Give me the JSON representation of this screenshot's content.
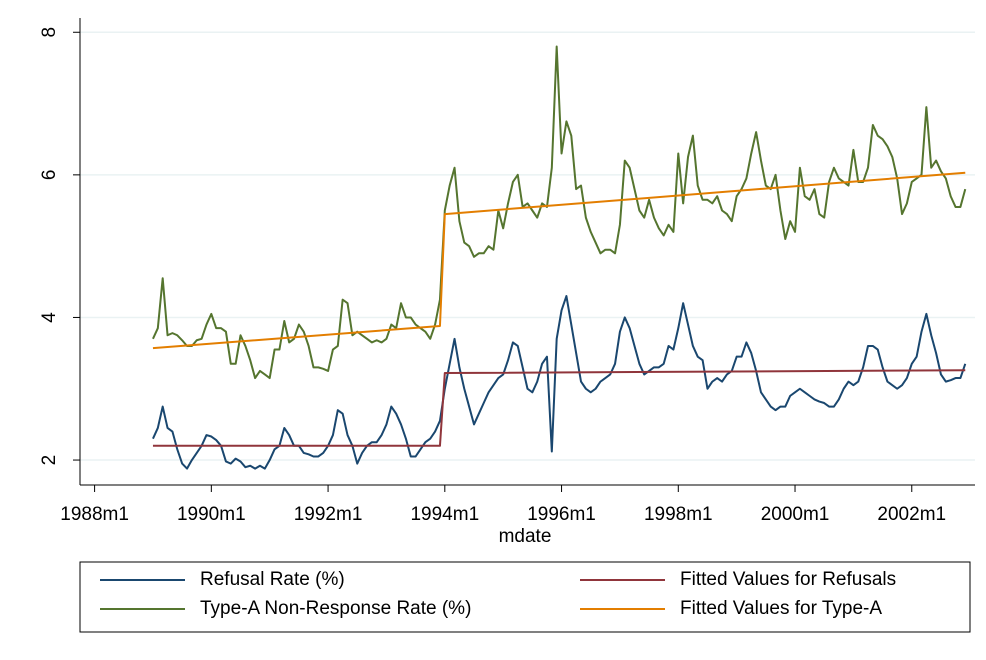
{
  "chart_data": {
    "type": "line",
    "x_label": "mdate",
    "x": [
      348,
      349,
      350,
      351,
      352,
      353,
      354,
      355,
      356,
      357,
      358,
      359,
      360,
      361,
      362,
      363,
      364,
      365,
      366,
      367,
      368,
      369,
      370,
      371,
      372,
      373,
      374,
      375,
      376,
      377,
      378,
      379,
      380,
      381,
      382,
      383,
      384,
      385,
      386,
      387,
      388,
      389,
      390,
      391,
      392,
      393,
      394,
      395,
      396,
      397,
      398,
      399,
      400,
      401,
      402,
      403,
      404,
      405,
      406,
      407,
      408,
      409,
      410,
      411,
      412,
      413,
      414,
      415,
      416,
      417,
      418,
      419,
      420,
      421,
      422,
      423,
      424,
      425,
      426,
      427,
      428,
      429,
      430,
      431,
      432,
      433,
      434,
      435,
      436,
      437,
      438,
      439,
      440,
      441,
      442,
      443,
      444,
      445,
      446,
      447,
      448,
      449,
      450,
      451,
      452,
      453,
      454,
      455,
      456,
      457,
      458,
      459,
      460,
      461,
      462,
      463,
      464,
      465,
      466,
      467,
      468,
      469,
      470,
      471,
      472,
      473,
      474,
      475,
      476,
      477,
      478,
      479,
      480,
      481,
      482,
      483,
      484,
      485,
      486,
      487,
      488,
      489,
      490,
      491,
      492,
      493,
      494,
      495,
      496,
      497,
      498,
      499,
      500,
      501,
      502,
      503,
      504,
      505,
      506,
      507,
      508,
      509,
      510,
      511,
      512,
      513,
      514,
      515
    ],
    "series": [
      {
        "name": "Refusal Rate (%)",
        "color": "#1a476f",
        "values": [
          2.3,
          2.45,
          2.75,
          2.45,
          2.4,
          2.15,
          1.95,
          1.88,
          2.0,
          2.1,
          2.2,
          2.35,
          2.33,
          2.28,
          2.2,
          1.98,
          1.95,
          2.02,
          1.98,
          1.9,
          1.92,
          1.88,
          1.92,
          1.88,
          2.0,
          2.15,
          2.2,
          2.45,
          2.35,
          2.2,
          2.2,
          2.1,
          2.08,
          2.05,
          2.05,
          2.1,
          2.2,
          2.35,
          2.7,
          2.65,
          2.35,
          2.2,
          1.95,
          2.1,
          2.2,
          2.25,
          2.25,
          2.35,
          2.5,
          2.75,
          2.65,
          2.5,
          2.3,
          2.05,
          2.05,
          2.15,
          2.25,
          2.3,
          2.4,
          2.55,
          3.0,
          3.35,
          3.7,
          3.3,
          3.0,
          2.75,
          2.5,
          2.65,
          2.8,
          2.95,
          3.05,
          3.15,
          3.2,
          3.4,
          3.65,
          3.6,
          3.3,
          3.0,
          2.95,
          3.1,
          3.35,
          3.45,
          2.12,
          3.7,
          4.1,
          4.3,
          3.9,
          3.5,
          3.1,
          3.0,
          2.95,
          3.0,
          3.1,
          3.15,
          3.2,
          3.35,
          3.8,
          4.0,
          3.85,
          3.6,
          3.35,
          3.2,
          3.25,
          3.3,
          3.3,
          3.35,
          3.6,
          3.55,
          3.85,
          4.2,
          3.9,
          3.6,
          3.45,
          3.4,
          3.0,
          3.1,
          3.15,
          3.1,
          3.2,
          3.25,
          3.45,
          3.45,
          3.65,
          3.5,
          3.25,
          2.95,
          2.85,
          2.75,
          2.7,
          2.75,
          2.75,
          2.9,
          2.95,
          3.0,
          2.95,
          2.9,
          2.85,
          2.82,
          2.8,
          2.75,
          2.75,
          2.85,
          3.0,
          3.1,
          3.05,
          3.1,
          3.3,
          3.6,
          3.6,
          3.55,
          3.3,
          3.1,
          3.05,
          3.0,
          3.05,
          3.15,
          3.35,
          3.45,
          3.8,
          4.05,
          3.75,
          3.5,
          3.2,
          3.1,
          3.12,
          3.15,
          3.15,
          3.35
        ]
      },
      {
        "name": "Type-A Non-Response Rate (%)",
        "color": "#55752f",
        "values": [
          3.7,
          3.85,
          4.55,
          3.75,
          3.78,
          3.75,
          3.68,
          3.6,
          3.6,
          3.68,
          3.7,
          3.9,
          4.05,
          3.85,
          3.85,
          3.8,
          3.35,
          3.35,
          3.75,
          3.6,
          3.4,
          3.15,
          3.25,
          3.2,
          3.15,
          3.55,
          3.55,
          3.95,
          3.65,
          3.7,
          3.9,
          3.8,
          3.6,
          3.3,
          3.3,
          3.28,
          3.25,
          3.55,
          3.6,
          4.25,
          4.2,
          3.75,
          3.8,
          3.75,
          3.7,
          3.65,
          3.68,
          3.65,
          3.7,
          3.9,
          3.85,
          4.2,
          4.0,
          4.0,
          3.9,
          3.85,
          3.8,
          3.7,
          3.9,
          4.25,
          5.5,
          5.85,
          6.1,
          5.35,
          5.05,
          5.0,
          4.85,
          4.9,
          4.9,
          5.0,
          4.95,
          5.5,
          5.25,
          5.6,
          5.9,
          6.0,
          5.55,
          5.6,
          5.5,
          5.4,
          5.6,
          5.55,
          6.1,
          7.8,
          6.3,
          6.75,
          6.55,
          5.8,
          5.85,
          5.4,
          5.2,
          5.05,
          4.9,
          4.95,
          4.95,
          4.9,
          5.3,
          6.2,
          6.1,
          5.8,
          5.5,
          5.4,
          5.65,
          5.4,
          5.25,
          5.15,
          5.3,
          5.2,
          6.3,
          5.6,
          6.25,
          6.55,
          5.85,
          5.65,
          5.65,
          5.6,
          5.7,
          5.5,
          5.45,
          5.35,
          5.7,
          5.8,
          5.95,
          6.3,
          6.6,
          6.2,
          5.85,
          5.8,
          6.0,
          5.5,
          5.1,
          5.35,
          5.2,
          6.1,
          5.7,
          5.65,
          5.8,
          5.45,
          5.4,
          5.9,
          6.1,
          5.95,
          5.9,
          5.85,
          6.35,
          5.9,
          5.9,
          6.1,
          6.7,
          6.55,
          6.5,
          6.4,
          6.25,
          5.95,
          5.45,
          5.6,
          5.9,
          5.95,
          6.0,
          6.95,
          6.1,
          6.2,
          6.05,
          5.95,
          5.7,
          5.55,
          5.55,
          5.8
        ]
      },
      {
        "name": "Fitted Values for Refusals",
        "color": "#90353b",
        "x": [
          348,
          407,
          408,
          515
        ],
        "values": [
          2.2,
          2.2,
          3.22,
          3.26
        ]
      },
      {
        "name": "Fitted Values for Type-A",
        "color": "#e37e00",
        "x": [
          348,
          407,
          408,
          515
        ],
        "values": [
          3.57,
          3.88,
          5.45,
          6.03
        ]
      }
    ],
    "xlim": [
      333,
      517
    ],
    "xticks": [
      {
        "value": 336,
        "label": "1988m1"
      },
      {
        "value": 360,
        "label": "1990m1"
      },
      {
        "value": 384,
        "label": "1992m1"
      },
      {
        "value": 408,
        "label": "1994m1"
      },
      {
        "value": 432,
        "label": "1996m1"
      },
      {
        "value": 456,
        "label": "1998m1"
      },
      {
        "value": 480,
        "label": "2000m1"
      },
      {
        "value": 504,
        "label": "2002m1"
      }
    ],
    "ylim": [
      1.65,
      8.2
    ],
    "yticks": [
      2,
      4,
      6,
      8
    ],
    "grid": true,
    "legend": "bottom"
  }
}
